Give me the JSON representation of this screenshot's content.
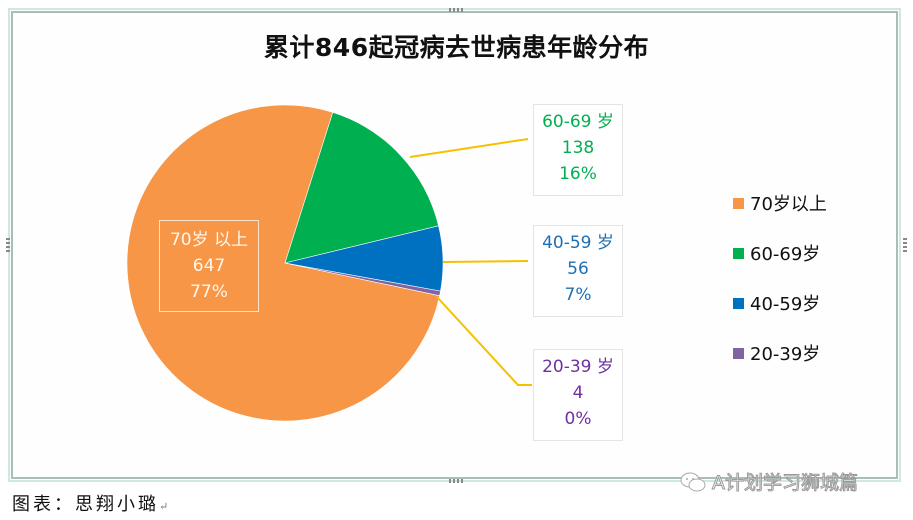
{
  "chart_data": {
    "type": "pie",
    "title": "累计846起冠病去世病患年龄分布",
    "total": 846,
    "categories": [
      "70岁以上",
      "60-69岁",
      "40-59岁",
      "20-39岁"
    ],
    "values": [
      647,
      138,
      56,
      4
    ],
    "percent_labels": [
      "77%",
      "16%",
      "7%",
      "0%"
    ],
    "colors": [
      "#F79646",
      "#00B050",
      "#0070C0",
      "#8064A2"
    ],
    "label_colors": [
      "#FFF8EE",
      "#00B050",
      "#1F6FB2",
      "#7030A0"
    ],
    "data_labels": [
      {
        "name": "70岁 以上",
        "value": "647",
        "percent": "77%"
      },
      {
        "name": "60-69 岁",
        "value": "138",
        "percent": "16%"
      },
      {
        "name": "40-59 岁",
        "value": "56",
        "percent": "7%"
      },
      {
        "name": "20-39 岁",
        "value": "4",
        "percent": "0%"
      }
    ],
    "legend": [
      "70岁以上",
      "60-69岁",
      "40-59岁",
      "20-39岁"
    ],
    "legend_position": "right",
    "leader_line_color": "#F5C000"
  },
  "caption": "图表：思翔小璐",
  "caption_return_mark": "↵",
  "watermark": "A计划学习狮城篇"
}
